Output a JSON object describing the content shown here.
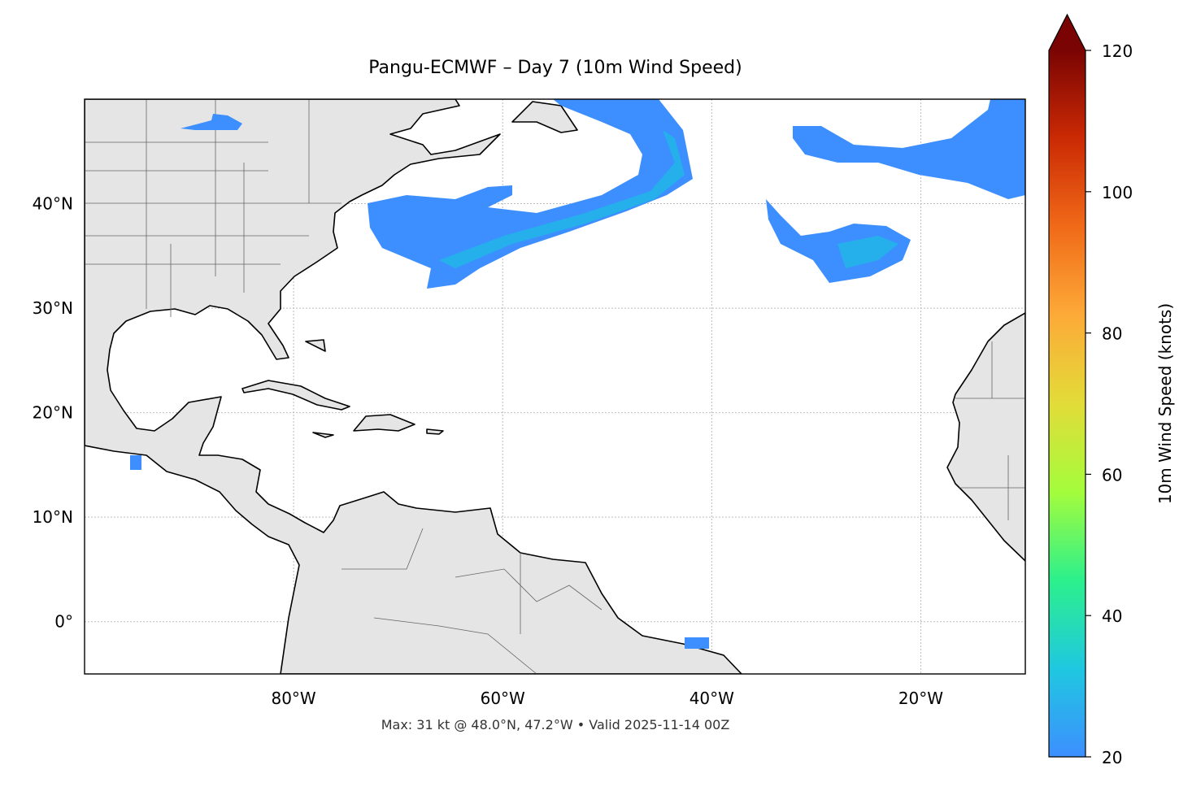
{
  "chart_data": {
    "type": "map",
    "title": "Pangu-ECMWF – Day 7 (10m Wind Speed)",
    "annotation": "Max: 31 kt @ 48.0°N, 47.2°W • Valid 2025-11-14 00Z",
    "xlim": [
      -100,
      -10
    ],
    "ylim": [
      -5,
      50
    ],
    "xticks": [
      {
        "value": -80,
        "label": "80°W"
      },
      {
        "value": -60,
        "label": "60°W"
      },
      {
        "value": -40,
        "label": "40°W"
      },
      {
        "value": -20,
        "label": "20°W"
      }
    ],
    "yticks": [
      {
        "value": 0,
        "label": "0°"
      },
      {
        "value": 10,
        "label": "10°N"
      },
      {
        "value": 20,
        "label": "20°N"
      },
      {
        "value": 30,
        "label": "30°N"
      },
      {
        "value": 40,
        "label": "40°N"
      }
    ],
    "grid": true,
    "colorbar": {
      "label": "10m Wind Speed (knots)",
      "lim": [
        20,
        120
      ],
      "ticks": [
        20,
        40,
        60,
        80,
        100,
        120
      ],
      "colormap": [
        "#3d8fff",
        "#1fc8e0",
        "#2cf08c",
        "#a4fc3c",
        "#e2dc38",
        "#fdaa38",
        "#f06a18",
        "#cb2a04",
        "#7a0403"
      ]
    }
  }
}
